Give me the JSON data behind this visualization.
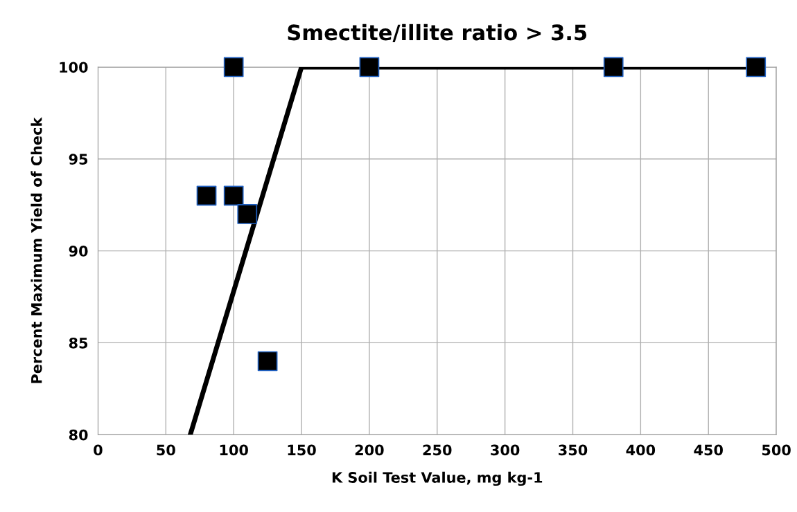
{
  "chart_data": {
    "type": "scatter",
    "title": "Smectite/illite ratio > 3.5",
    "xlabel": "K Soil Test Value, mg kg-1",
    "ylabel": "Percent Maximum Yield of Check",
    "series": [
      {
        "color": "#000000",
        "marker": "square",
        "x": [
          80,
          100,
          100,
          110,
          125,
          200,
          380,
          485
        ],
        "values": [
          93,
          100,
          93,
          92,
          84,
          100,
          100,
          100
        ]
      },
      {
        "type": "line",
        "color": "#000000",
        "x": [
          68,
          150,
          485
        ],
        "values": [
          80,
          100,
          100
        ]
      }
    ],
    "xlim": [
      0,
      500
    ],
    "xticks": [
      0,
      50,
      100,
      150,
      200,
      250,
      300,
      350,
      400,
      450,
      500
    ],
    "ylim": [
      80,
      100
    ],
    "yticks": [
      80,
      85,
      90,
      95,
      100
    ],
    "grid": true
  }
}
